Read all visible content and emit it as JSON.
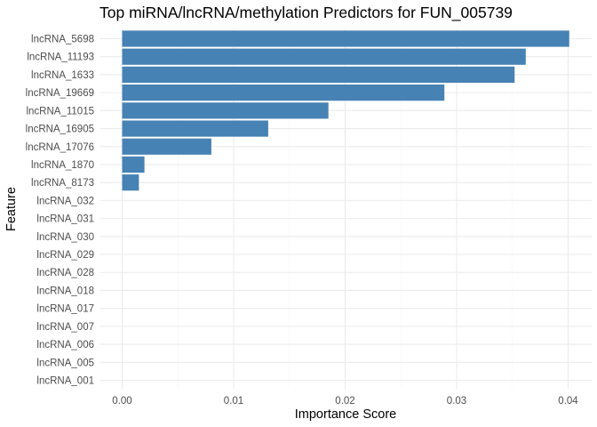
{
  "chart_data": {
    "type": "bar",
    "orientation": "horizontal",
    "title": "Top miRNA/lncRNA/methylation Predictors for FUN_005739",
    "xlabel": "Importance Score",
    "ylabel": "Feature",
    "xlim": [
      0,
      0.04
    ],
    "x_ticks": [
      0.0,
      0.01,
      0.02,
      0.03,
      0.04
    ],
    "x_tick_labels": [
      "0.00",
      "0.01",
      "0.02",
      "0.03",
      "0.04"
    ],
    "grid": true,
    "bar_color": "#4682B4",
    "categories": [
      "lncRNA_5698",
      "lncRNA_11193",
      "lncRNA_1633",
      "lncRNA_19669",
      "lncRNA_11015",
      "lncRNA_16905",
      "lncRNA_17076",
      "lncRNA_1870",
      "lncRNA_8173",
      "lncRNA_032",
      "lncRNA_031",
      "lncRNA_030",
      "lncRNA_029",
      "lncRNA_028",
      "lncRNA_018",
      "lncRNA_017",
      "lncRNA_007",
      "lncRNA_006",
      "lncRNA_005",
      "lncRNA_001"
    ],
    "values": [
      0.0401,
      0.0362,
      0.0352,
      0.0289,
      0.0185,
      0.0131,
      0.008,
      0.002,
      0.0015,
      0,
      0,
      0,
      0,
      0,
      0,
      0,
      0,
      0,
      0,
      0
    ]
  }
}
